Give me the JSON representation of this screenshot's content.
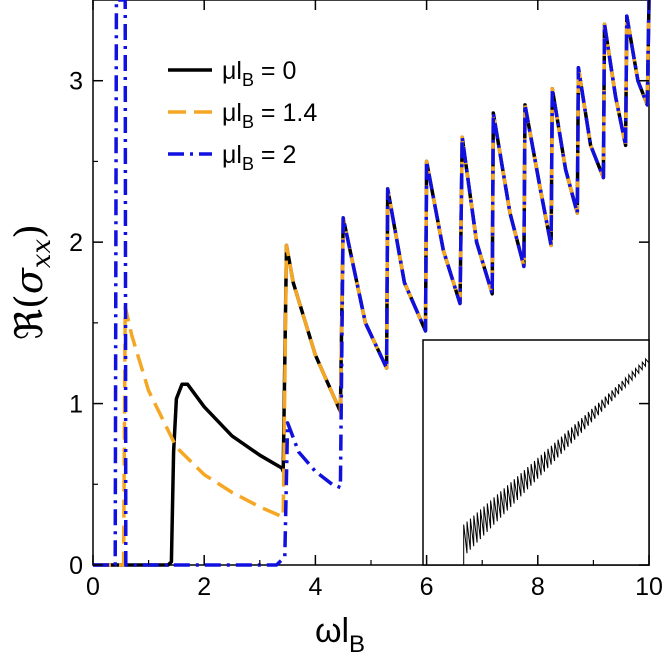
{
  "chart_data": {
    "type": "line",
    "xlabel": "ωl",
    "xlabel_sub": "B",
    "ylabel_prefix": "ℜ(",
    "ylabel_var": "σ",
    "ylabel_sub": "xx",
    "ylabel_suffix": ")",
    "xlim": [
      0,
      10
    ],
    "ylim": [
      0,
      3.5
    ],
    "x_ticks": [
      "0",
      "2",
      "4",
      "6",
      "8",
      "10"
    ],
    "y_ticks": [
      "0",
      "1",
      "2",
      "3"
    ],
    "grid": false,
    "legend_position": "top-left",
    "series": [
      {
        "name_prefix": "μl",
        "name_sub": "B",
        "name_value": " = 0",
        "color": "#000000",
        "style": "solid",
        "points": [
          [
            0,
            0
          ],
          [
            1.35,
            0
          ],
          [
            1.41,
            0.02
          ],
          [
            1.45,
            0.7
          ],
          [
            1.5,
            1.03
          ],
          [
            1.6,
            1.12
          ],
          [
            1.7,
            1.12
          ],
          [
            2.0,
            0.98
          ],
          [
            2.5,
            0.8
          ],
          [
            3.0,
            0.68
          ],
          [
            3.4,
            0.6
          ],
          [
            3.42,
            0.58
          ],
          [
            3.48,
            1.98
          ],
          [
            3.6,
            1.75
          ],
          [
            4.0,
            1.3
          ],
          [
            4.45,
            0.95
          ],
          [
            4.5,
            2.15
          ],
          [
            4.9,
            1.5
          ],
          [
            5.28,
            1.22
          ],
          [
            5.3,
            2.33
          ],
          [
            5.6,
            1.75
          ],
          [
            5.98,
            1.45
          ],
          [
            6.0,
            2.5
          ],
          [
            6.3,
            1.95
          ],
          [
            6.6,
            1.62
          ],
          [
            6.64,
            2.65
          ],
          [
            6.9,
            2.0
          ],
          [
            7.18,
            1.68
          ],
          [
            7.2,
            2.8
          ],
          [
            7.5,
            2.18
          ],
          [
            7.75,
            1.85
          ],
          [
            7.77,
            2.85
          ],
          [
            8.05,
            2.32
          ],
          [
            8.24,
            1.98
          ],
          [
            8.26,
            2.95
          ],
          [
            8.5,
            2.45
          ],
          [
            8.71,
            2.18
          ],
          [
            8.73,
            3.08
          ],
          [
            8.95,
            2.6
          ],
          [
            9.18,
            2.4
          ],
          [
            9.2,
            3.35
          ],
          [
            9.4,
            2.9
          ],
          [
            9.58,
            2.6
          ],
          [
            9.6,
            3.4
          ],
          [
            9.8,
            3.0
          ],
          [
            9.97,
            2.85
          ],
          [
            10.0,
            3.5
          ]
        ]
      },
      {
        "name_prefix": "μl",
        "name_sub": "B",
        "name_value": " = 1.4",
        "color": "#f5a623",
        "style": "dashed",
        "points": [
          [
            0,
            0
          ],
          [
            0.55,
            0
          ],
          [
            0.58,
            1.6
          ],
          [
            0.7,
            1.42
          ],
          [
            1.0,
            1.08
          ],
          [
            1.5,
            0.73
          ],
          [
            2.0,
            0.56
          ],
          [
            2.5,
            0.45
          ],
          [
            3.0,
            0.36
          ],
          [
            3.4,
            0.3
          ],
          [
            3.42,
            0.3
          ],
          [
            3.48,
            1.98
          ],
          [
            3.6,
            1.75
          ],
          [
            4.0,
            1.3
          ],
          [
            4.45,
            0.95
          ],
          [
            4.5,
            2.15
          ],
          [
            4.9,
            1.5
          ],
          [
            5.28,
            1.22
          ],
          [
            5.3,
            2.33
          ],
          [
            5.6,
            1.75
          ],
          [
            5.98,
            1.45
          ],
          [
            6.0,
            2.5
          ],
          [
            6.3,
            1.95
          ],
          [
            6.6,
            1.62
          ],
          [
            6.64,
            2.65
          ],
          [
            6.9,
            2.0
          ],
          [
            7.18,
            1.68
          ],
          [
            7.2,
            2.8
          ],
          [
            7.5,
            2.18
          ],
          [
            7.75,
            1.85
          ],
          [
            7.77,
            2.85
          ],
          [
            8.05,
            2.32
          ],
          [
            8.24,
            1.98
          ],
          [
            8.26,
            2.95
          ],
          [
            8.5,
            2.45
          ],
          [
            8.71,
            2.18
          ],
          [
            8.73,
            3.08
          ],
          [
            8.95,
            2.6
          ],
          [
            9.18,
            2.4
          ],
          [
            9.2,
            3.35
          ],
          [
            9.4,
            2.9
          ],
          [
            9.58,
            2.6
          ],
          [
            9.6,
            3.4
          ],
          [
            9.8,
            3.0
          ],
          [
            9.97,
            2.85
          ],
          [
            10.0,
            3.5
          ]
        ]
      },
      {
        "name_prefix": "μl",
        "name_sub": "B",
        "name_value": " = 2",
        "color": "#1010e0",
        "style": "dashdot",
        "points": [
          [
            0,
            0
          ],
          [
            0.4,
            0
          ],
          [
            0.42,
            3.5
          ],
          [
            0.58,
            3.5
          ],
          [
            0.59,
            0
          ],
          [
            3.3,
            0
          ],
          [
            3.45,
            0.05
          ],
          [
            3.5,
            0.88
          ],
          [
            3.7,
            0.7
          ],
          [
            4.0,
            0.58
          ],
          [
            4.3,
            0.5
          ],
          [
            4.45,
            0.48
          ],
          [
            4.5,
            2.15
          ],
          [
            4.9,
            1.5
          ],
          [
            5.28,
            1.22
          ],
          [
            5.3,
            2.33
          ],
          [
            5.6,
            1.75
          ],
          [
            5.98,
            1.45
          ],
          [
            6.0,
            2.5
          ],
          [
            6.3,
            1.95
          ],
          [
            6.6,
            1.62
          ],
          [
            6.64,
            2.65
          ],
          [
            6.9,
            2.0
          ],
          [
            7.18,
            1.68
          ],
          [
            7.2,
            2.8
          ],
          [
            7.5,
            2.18
          ],
          [
            7.75,
            1.85
          ],
          [
            7.77,
            2.85
          ],
          [
            8.05,
            2.32
          ],
          [
            8.24,
            1.98
          ],
          [
            8.26,
            2.95
          ],
          [
            8.5,
            2.45
          ],
          [
            8.71,
            2.18
          ],
          [
            8.73,
            3.08
          ],
          [
            8.95,
            2.6
          ],
          [
            9.18,
            2.4
          ],
          [
            9.2,
            3.35
          ],
          [
            9.4,
            2.9
          ],
          [
            9.58,
            2.6
          ],
          [
            9.6,
            3.4
          ],
          [
            9.8,
            3.0
          ],
          [
            9.97,
            2.85
          ],
          [
            10.0,
            3.5
          ]
        ]
      }
    ],
    "inset": {
      "description_free": true,
      "x_range": [
        0,
        1
      ],
      "y_range": [
        0,
        1
      ],
      "onset": 0.18,
      "end_level": 0.92,
      "oscillation_count": 55
    }
  }
}
